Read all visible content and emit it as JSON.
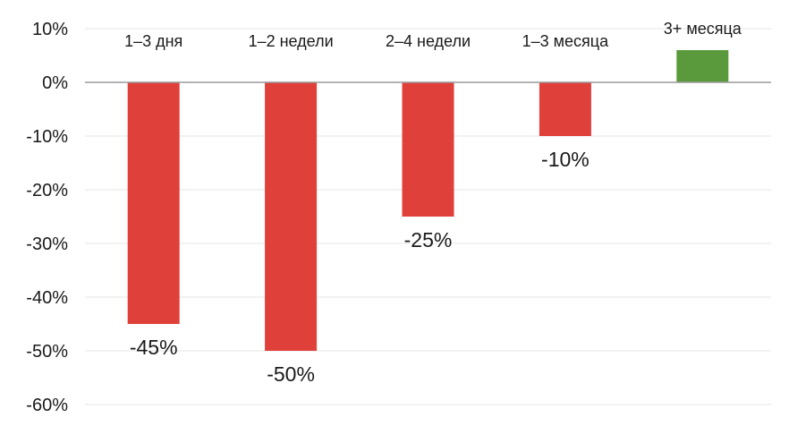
{
  "chart_data": {
    "type": "bar",
    "categories": [
      "1–3 дня",
      "1–2 недели",
      "2–4 недели",
      "1–3 месяца",
      "3+ месяца"
    ],
    "values": [
      -45,
      -50,
      -25,
      -10,
      6
    ],
    "data_labels": [
      "-45%",
      "-50%",
      "-25%",
      "-10%",
      ""
    ],
    "ylim": [
      -60,
      10
    ],
    "yticks": [
      10,
      0,
      -10,
      -20,
      -30,
      -40,
      -50,
      -60
    ],
    "ytick_labels": [
      "10%",
      "0%",
      "-10%",
      "-20%",
      "-30%",
      "-40%",
      "-50%",
      "-60%"
    ],
    "title": "",
    "xlabel": "",
    "ylabel": "",
    "grid": true,
    "colors": {
      "negative": "#e0403a",
      "positive": "#5a9a3c",
      "grid": "#e6e6e6",
      "axis": "#9a9a9a"
    }
  }
}
